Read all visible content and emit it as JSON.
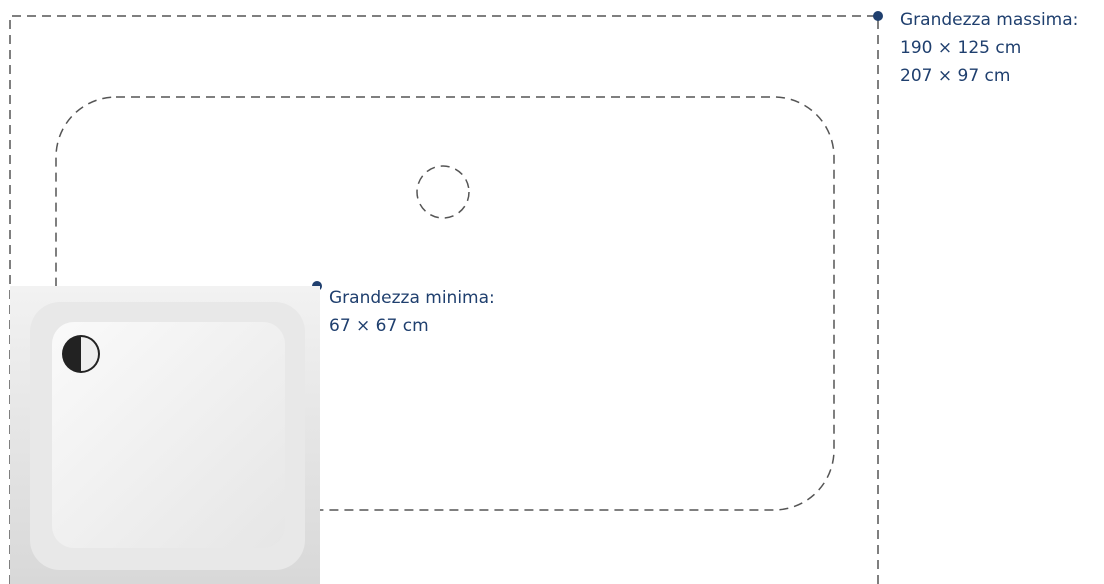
{
  "max_label": {
    "title": "Grandezza massima:",
    "sizes": [
      "190 × 125 cm",
      "207 × 97 cm"
    ]
  },
  "min_label": {
    "title": "Grandezza minima:",
    "sizes": [
      "67 × 67 cm"
    ]
  }
}
